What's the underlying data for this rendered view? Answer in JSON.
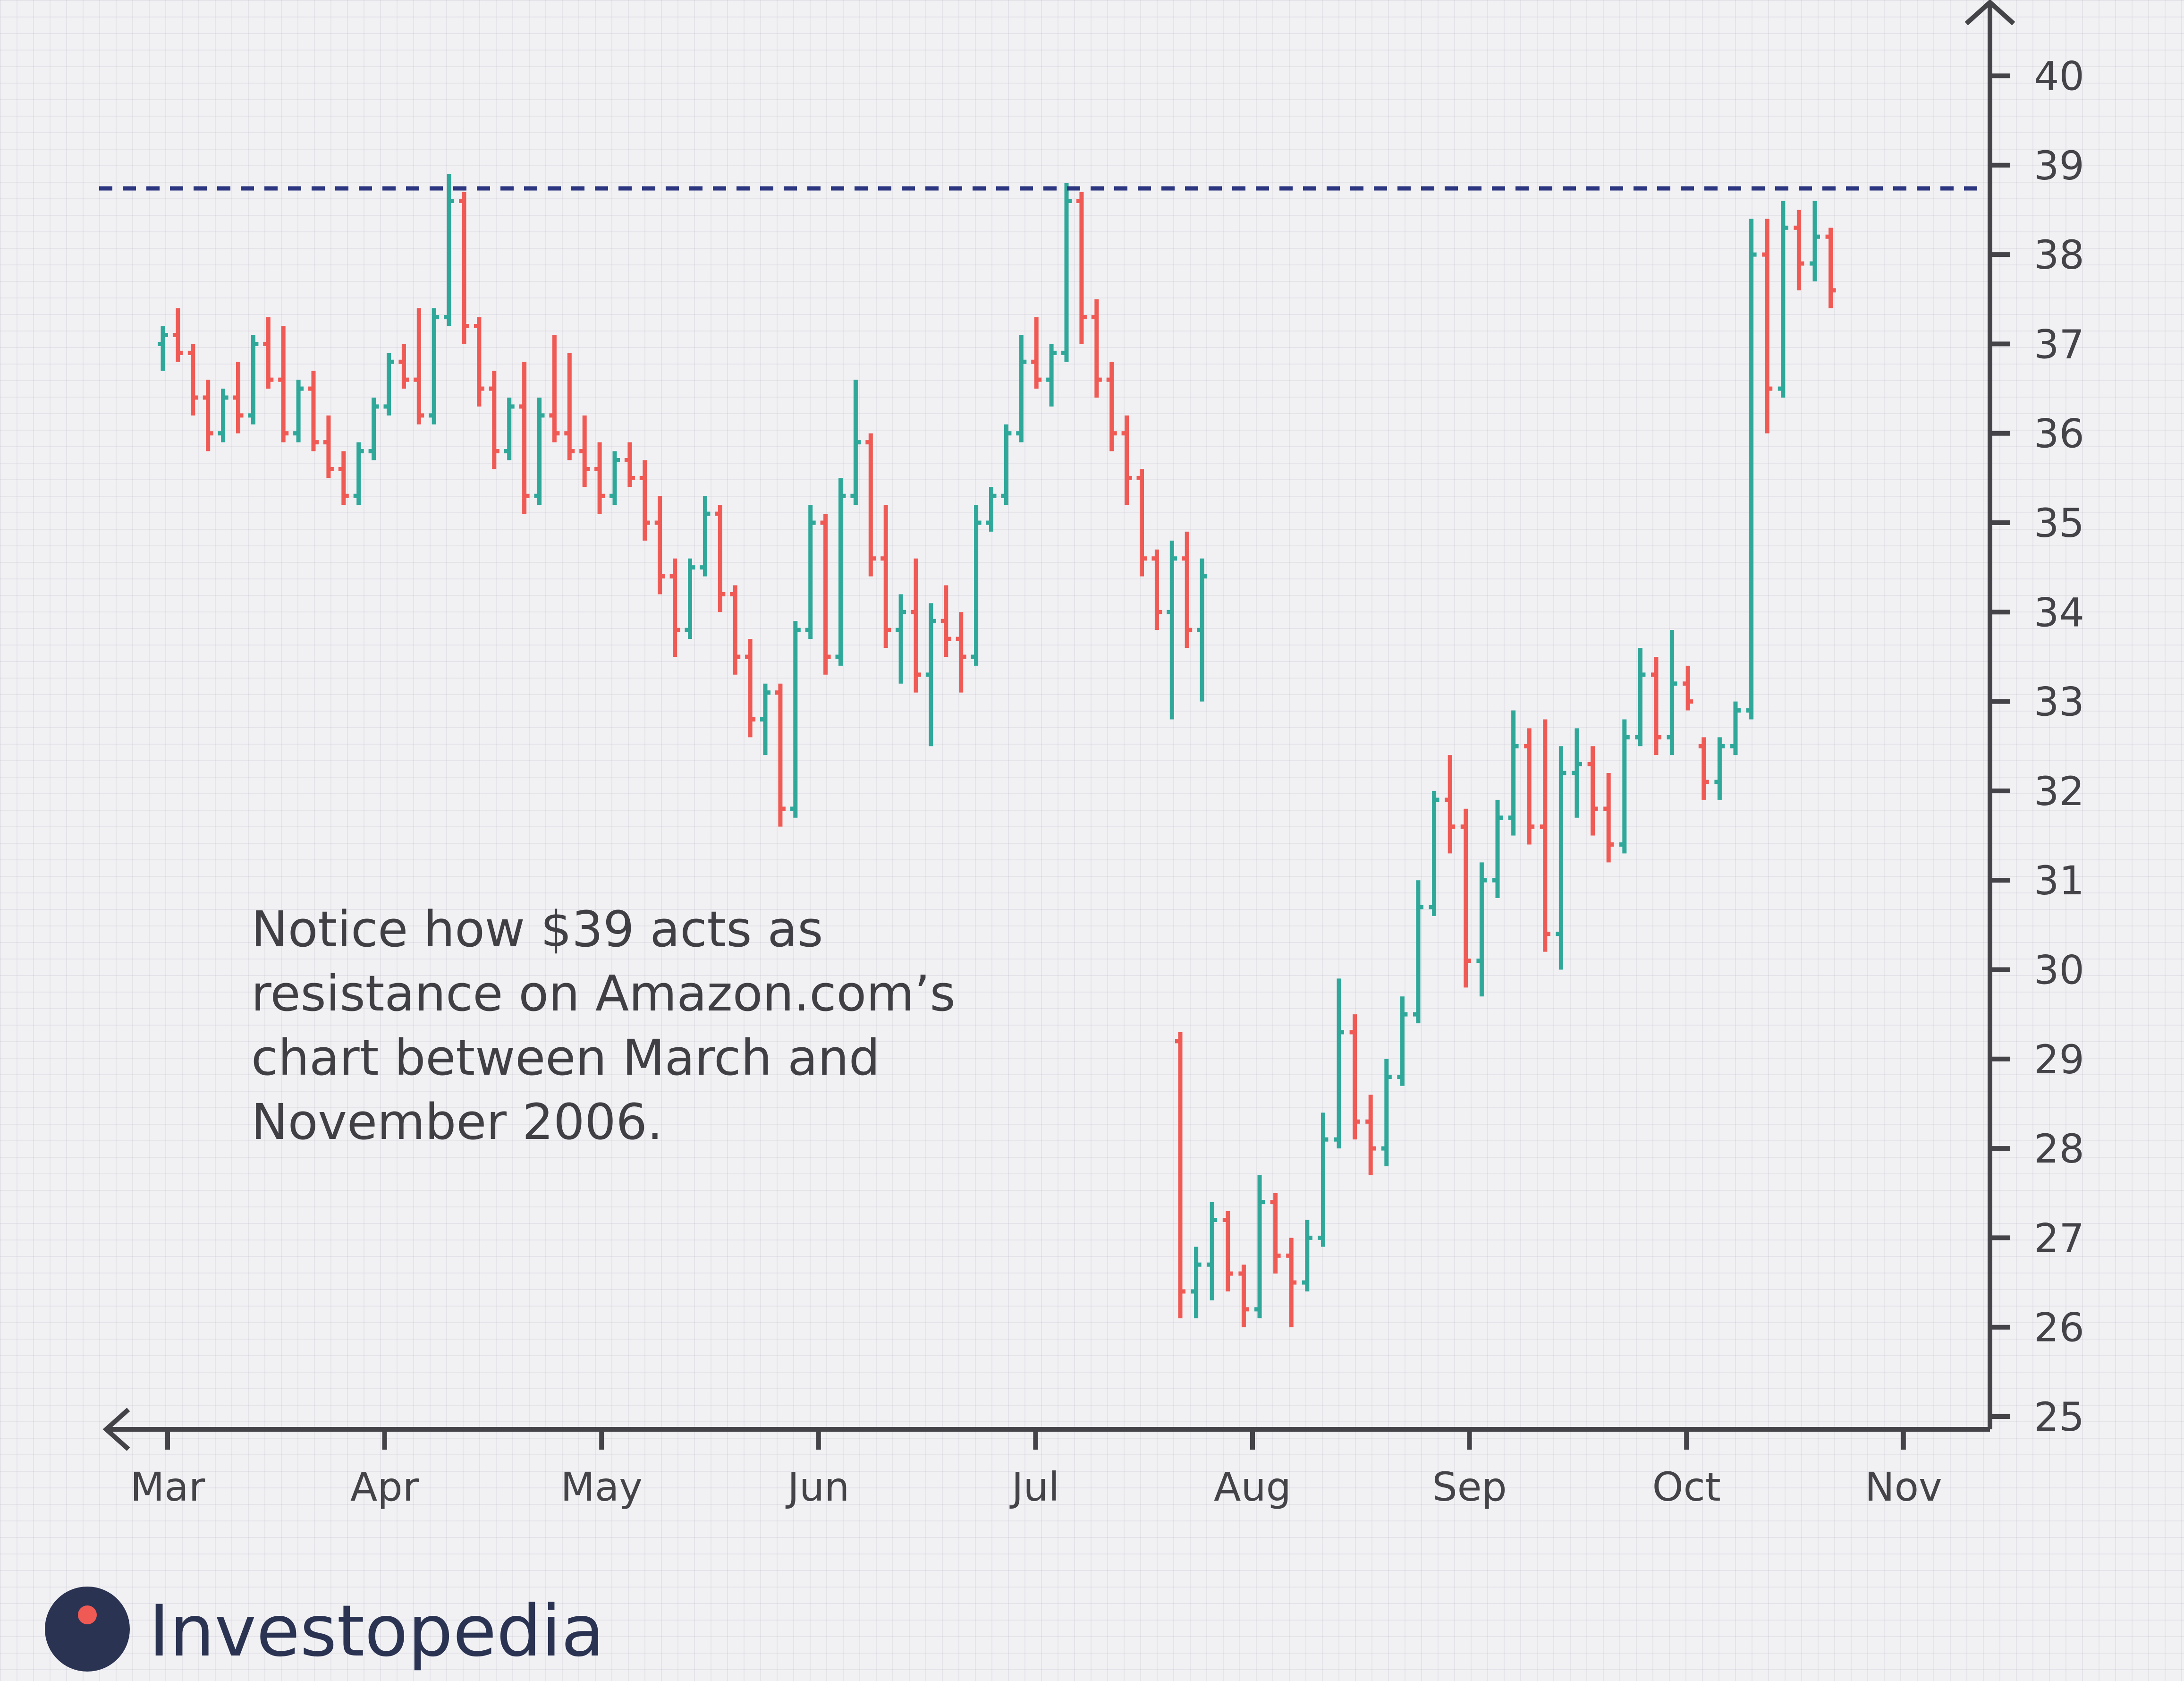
{
  "annotation": "Notice how $39 acts as resistance on Amazon.com’s chart between March and November 2006.",
  "brand": "Investopedia",
  "colors": {
    "up": "#2fa89a",
    "down": "#ef5a55",
    "axis": "#444448",
    "resistance": "#2b3580"
  },
  "chart_data": {
    "type": "bar",
    "subtype": "ohlc",
    "title": "",
    "xlabel": "",
    "ylabel": "",
    "x_ticks": [
      "Mar",
      "Apr",
      "May",
      "Jun",
      "Jul",
      "Aug",
      "Sep",
      "Oct",
      "Nov"
    ],
    "y_ticks": [
      25,
      26,
      27,
      28,
      29,
      30,
      31,
      32,
      33,
      34,
      35,
      36,
      37,
      38,
      39,
      40
    ],
    "ylim": [
      24.6,
      40.4
    ],
    "grid": true,
    "resistance_level": 38.74,
    "series_note": "daily OHLC, trading days between Mar and Nov",
    "ohlc": [
      [
        37.0,
        37.2,
        36.7,
        37.1
      ],
      [
        37.1,
        37.4,
        36.8,
        36.9
      ],
      [
        36.9,
        37.0,
        36.2,
        36.4
      ],
      [
        36.4,
        36.6,
        35.8,
        36.0
      ],
      [
        36.0,
        36.5,
        35.9,
        36.4
      ],
      [
        36.4,
        36.8,
        36.0,
        36.2
      ],
      [
        36.2,
        37.1,
        36.1,
        37.0
      ],
      [
        37.0,
        37.3,
        36.5,
        36.6
      ],
      [
        36.6,
        37.2,
        35.9,
        36.0
      ],
      [
        36.0,
        36.6,
        35.9,
        36.5
      ],
      [
        36.5,
        36.7,
        35.8,
        35.9
      ],
      [
        35.9,
        36.2,
        35.5,
        35.6
      ],
      [
        35.6,
        35.8,
        35.2,
        35.3
      ],
      [
        35.3,
        35.9,
        35.2,
        35.8
      ],
      [
        35.8,
        36.4,
        35.7,
        36.3
      ],
      [
        36.3,
        36.9,
        36.2,
        36.8
      ],
      [
        36.8,
        37.0,
        36.5,
        36.6
      ],
      [
        36.6,
        37.4,
        36.1,
        36.2
      ],
      [
        36.2,
        37.4,
        36.1,
        37.3
      ],
      [
        37.3,
        38.9,
        37.2,
        38.6
      ],
      [
        38.6,
        38.7,
        37.0,
        37.2
      ],
      [
        37.2,
        37.3,
        36.3,
        36.5
      ],
      [
        36.5,
        36.7,
        35.6,
        35.8
      ],
      [
        35.8,
        36.4,
        35.7,
        36.3
      ],
      [
        36.3,
        36.8,
        35.1,
        35.3
      ],
      [
        35.3,
        36.4,
        35.2,
        36.2
      ],
      [
        36.2,
        37.1,
        35.9,
        36.0
      ],
      [
        36.0,
        36.9,
        35.7,
        35.8
      ],
      [
        35.8,
        36.2,
        35.4,
        35.6
      ],
      [
        35.6,
        35.9,
        35.1,
        35.3
      ],
      [
        35.3,
        35.8,
        35.2,
        35.7
      ],
      [
        35.7,
        35.9,
        35.4,
        35.5
      ],
      [
        35.5,
        35.7,
        34.8,
        35.0
      ],
      [
        35.0,
        35.3,
        34.2,
        34.4
      ],
      [
        34.4,
        34.6,
        33.5,
        33.8
      ],
      [
        33.8,
        34.6,
        33.7,
        34.5
      ],
      [
        34.5,
        35.3,
        34.4,
        35.1
      ],
      [
        35.1,
        35.2,
        34.0,
        34.2
      ],
      [
        34.2,
        34.3,
        33.3,
        33.5
      ],
      [
        33.5,
        33.7,
        32.6,
        32.8
      ],
      [
        32.8,
        33.2,
        32.4,
        33.1
      ],
      [
        33.1,
        33.2,
        31.6,
        31.8
      ],
      [
        31.8,
        33.9,
        31.7,
        33.8
      ],
      [
        33.8,
        35.2,
        33.7,
        35.0
      ],
      [
        35.0,
        35.1,
        33.3,
        33.5
      ],
      [
        33.5,
        35.5,
        33.4,
        35.3
      ],
      [
        35.3,
        36.6,
        35.2,
        35.9
      ],
      [
        35.9,
        36.0,
        34.4,
        34.6
      ],
      [
        34.6,
        35.2,
        33.6,
        33.8
      ],
      [
        33.8,
        34.2,
        33.2,
        34.0
      ],
      [
        34.0,
        34.6,
        33.1,
        33.3
      ],
      [
        33.3,
        34.1,
        32.5,
        33.9
      ],
      [
        33.9,
        34.3,
        33.5,
        33.7
      ],
      [
        33.7,
        34.0,
        33.1,
        33.5
      ],
      [
        33.5,
        35.2,
        33.4,
        35.0
      ],
      [
        35.0,
        35.4,
        34.9,
        35.3
      ],
      [
        35.3,
        36.1,
        35.2,
        36.0
      ],
      [
        36.0,
        37.1,
        35.9,
        36.8
      ],
      [
        36.8,
        37.3,
        36.5,
        36.6
      ],
      [
        36.6,
        37.0,
        36.3,
        36.9
      ],
      [
        36.9,
        38.8,
        36.8,
        38.6
      ],
      [
        38.6,
        38.7,
        37.0,
        37.3
      ],
      [
        37.3,
        37.5,
        36.4,
        36.6
      ],
      [
        36.6,
        36.8,
        35.8,
        36.0
      ],
      [
        36.0,
        36.2,
        35.2,
        35.5
      ],
      [
        35.5,
        35.6,
        34.4,
        34.6
      ],
      [
        34.6,
        34.7,
        33.8,
        34.0
      ],
      [
        34.0,
        34.8,
        32.8,
        34.6
      ],
      [
        34.6,
        34.9,
        33.6,
        33.8
      ],
      [
        33.8,
        34.6,
        33.0,
        34.4
      ]
    ],
    "ohlc_after_gap": [
      [
        29.2,
        29.3,
        26.1,
        26.4
      ],
      [
        26.4,
        26.9,
        26.1,
        26.7
      ],
      [
        26.7,
        27.4,
        26.3,
        27.2
      ],
      [
        27.2,
        27.3,
        26.4,
        26.6
      ],
      [
        26.6,
        26.7,
        26.0,
        26.2
      ],
      [
        26.2,
        27.7,
        26.1,
        27.4
      ],
      [
        27.4,
        27.5,
        26.6,
        26.8
      ],
      [
        26.8,
        27.0,
        26.0,
        26.5
      ],
      [
        26.5,
        27.2,
        26.4,
        27.0
      ],
      [
        27.0,
        28.4,
        26.9,
        28.1
      ],
      [
        28.1,
        29.9,
        28.0,
        29.3
      ],
      [
        29.3,
        29.5,
        28.1,
        28.3
      ],
      [
        28.3,
        28.6,
        27.7,
        28.0
      ],
      [
        28.0,
        29.0,
        27.8,
        28.8
      ],
      [
        28.8,
        29.7,
        28.7,
        29.5
      ],
      [
        29.5,
        31.0,
        29.4,
        30.7
      ],
      [
        30.7,
        32.0,
        30.6,
        31.9
      ],
      [
        31.9,
        32.4,
        31.3,
        31.6
      ],
      [
        31.6,
        31.8,
        29.8,
        30.1
      ],
      [
        30.1,
        31.2,
        29.7,
        31.0
      ],
      [
        31.0,
        31.9,
        30.8,
        31.7
      ],
      [
        31.7,
        32.9,
        31.5,
        32.5
      ],
      [
        32.5,
        32.7,
        31.4,
        31.6
      ],
      [
        31.6,
        32.8,
        30.2,
        30.4
      ],
      [
        30.4,
        32.5,
        30.0,
        32.2
      ],
      [
        32.2,
        32.7,
        31.7,
        32.3
      ],
      [
        32.3,
        32.5,
        31.5,
        31.8
      ],
      [
        31.8,
        32.2,
        31.2,
        31.4
      ],
      [
        31.4,
        32.8,
        31.3,
        32.6
      ],
      [
        32.6,
        33.6,
        32.5,
        33.3
      ],
      [
        33.3,
        33.5,
        32.4,
        32.6
      ],
      [
        32.6,
        33.8,
        32.4,
        33.2
      ],
      [
        33.2,
        33.4,
        32.9,
        33.0
      ],
      [
        32.5,
        32.6,
        31.9,
        32.1
      ],
      [
        32.1,
        32.6,
        31.9,
        32.5
      ],
      [
        32.5,
        33.0,
        32.4,
        32.9
      ],
      [
        32.9,
        38.4,
        32.8,
        38.0
      ],
      [
        38.0,
        38.4,
        36.0,
        36.5
      ],
      [
        36.5,
        38.6,
        36.4,
        38.3
      ],
      [
        38.3,
        38.5,
        37.6,
        37.9
      ],
      [
        37.9,
        38.6,
        37.7,
        38.2
      ],
      [
        38.2,
        38.3,
        37.4,
        37.6
      ]
    ]
  }
}
